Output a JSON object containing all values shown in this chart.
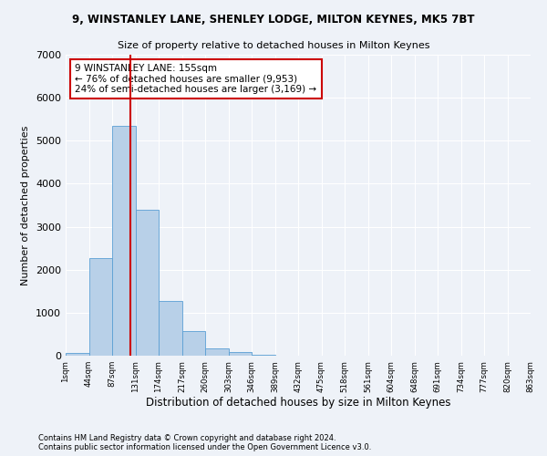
{
  "title1": "9, WINSTANLEY LANE, SHENLEY LODGE, MILTON KEYNES, MK5 7BT",
  "title2": "Size of property relative to detached houses in Milton Keynes",
  "xlabel": "Distribution of detached houses by size in Milton Keynes",
  "ylabel": "Number of detached properties",
  "footer1": "Contains HM Land Registry data © Crown copyright and database right 2024.",
  "footer2": "Contains public sector information licensed under the Open Government Licence v3.0.",
  "annotation_line1": "9 WINSTANLEY LANE: 155sqm",
  "annotation_line2": "← 76% of detached houses are smaller (9,953)",
  "annotation_line3": "24% of semi-detached houses are larger (3,169) →",
  "property_bin_index": 2.79,
  "bar_heights": [
    70,
    2270,
    5350,
    3400,
    1280,
    580,
    170,
    75,
    25,
    5,
    2,
    1,
    0,
    0,
    0,
    0,
    0,
    0,
    0,
    0
  ],
  "tick_labels": [
    "1sqm",
    "44sqm",
    "87sqm",
    "131sqm",
    "174sqm",
    "217sqm",
    "260sqm",
    "303sqm",
    "346sqm",
    "389sqm",
    "432sqm",
    "475sqm",
    "518sqm",
    "561sqm",
    "604sqm",
    "648sqm",
    "691sqm",
    "734sqm",
    "777sqm",
    "820sqm",
    "863sqm"
  ],
  "bar_color": "#b8d0e8",
  "bar_edge_color": "#5a9fd4",
  "vline_color": "#cc0000",
  "annotation_box_edge_color": "#cc0000",
  "background_color": "#eef2f8",
  "grid_color": "#ffffff",
  "ylim": [
    0,
    7000
  ],
  "yticks": [
    0,
    1000,
    2000,
    3000,
    4000,
    5000,
    6000,
    7000
  ]
}
